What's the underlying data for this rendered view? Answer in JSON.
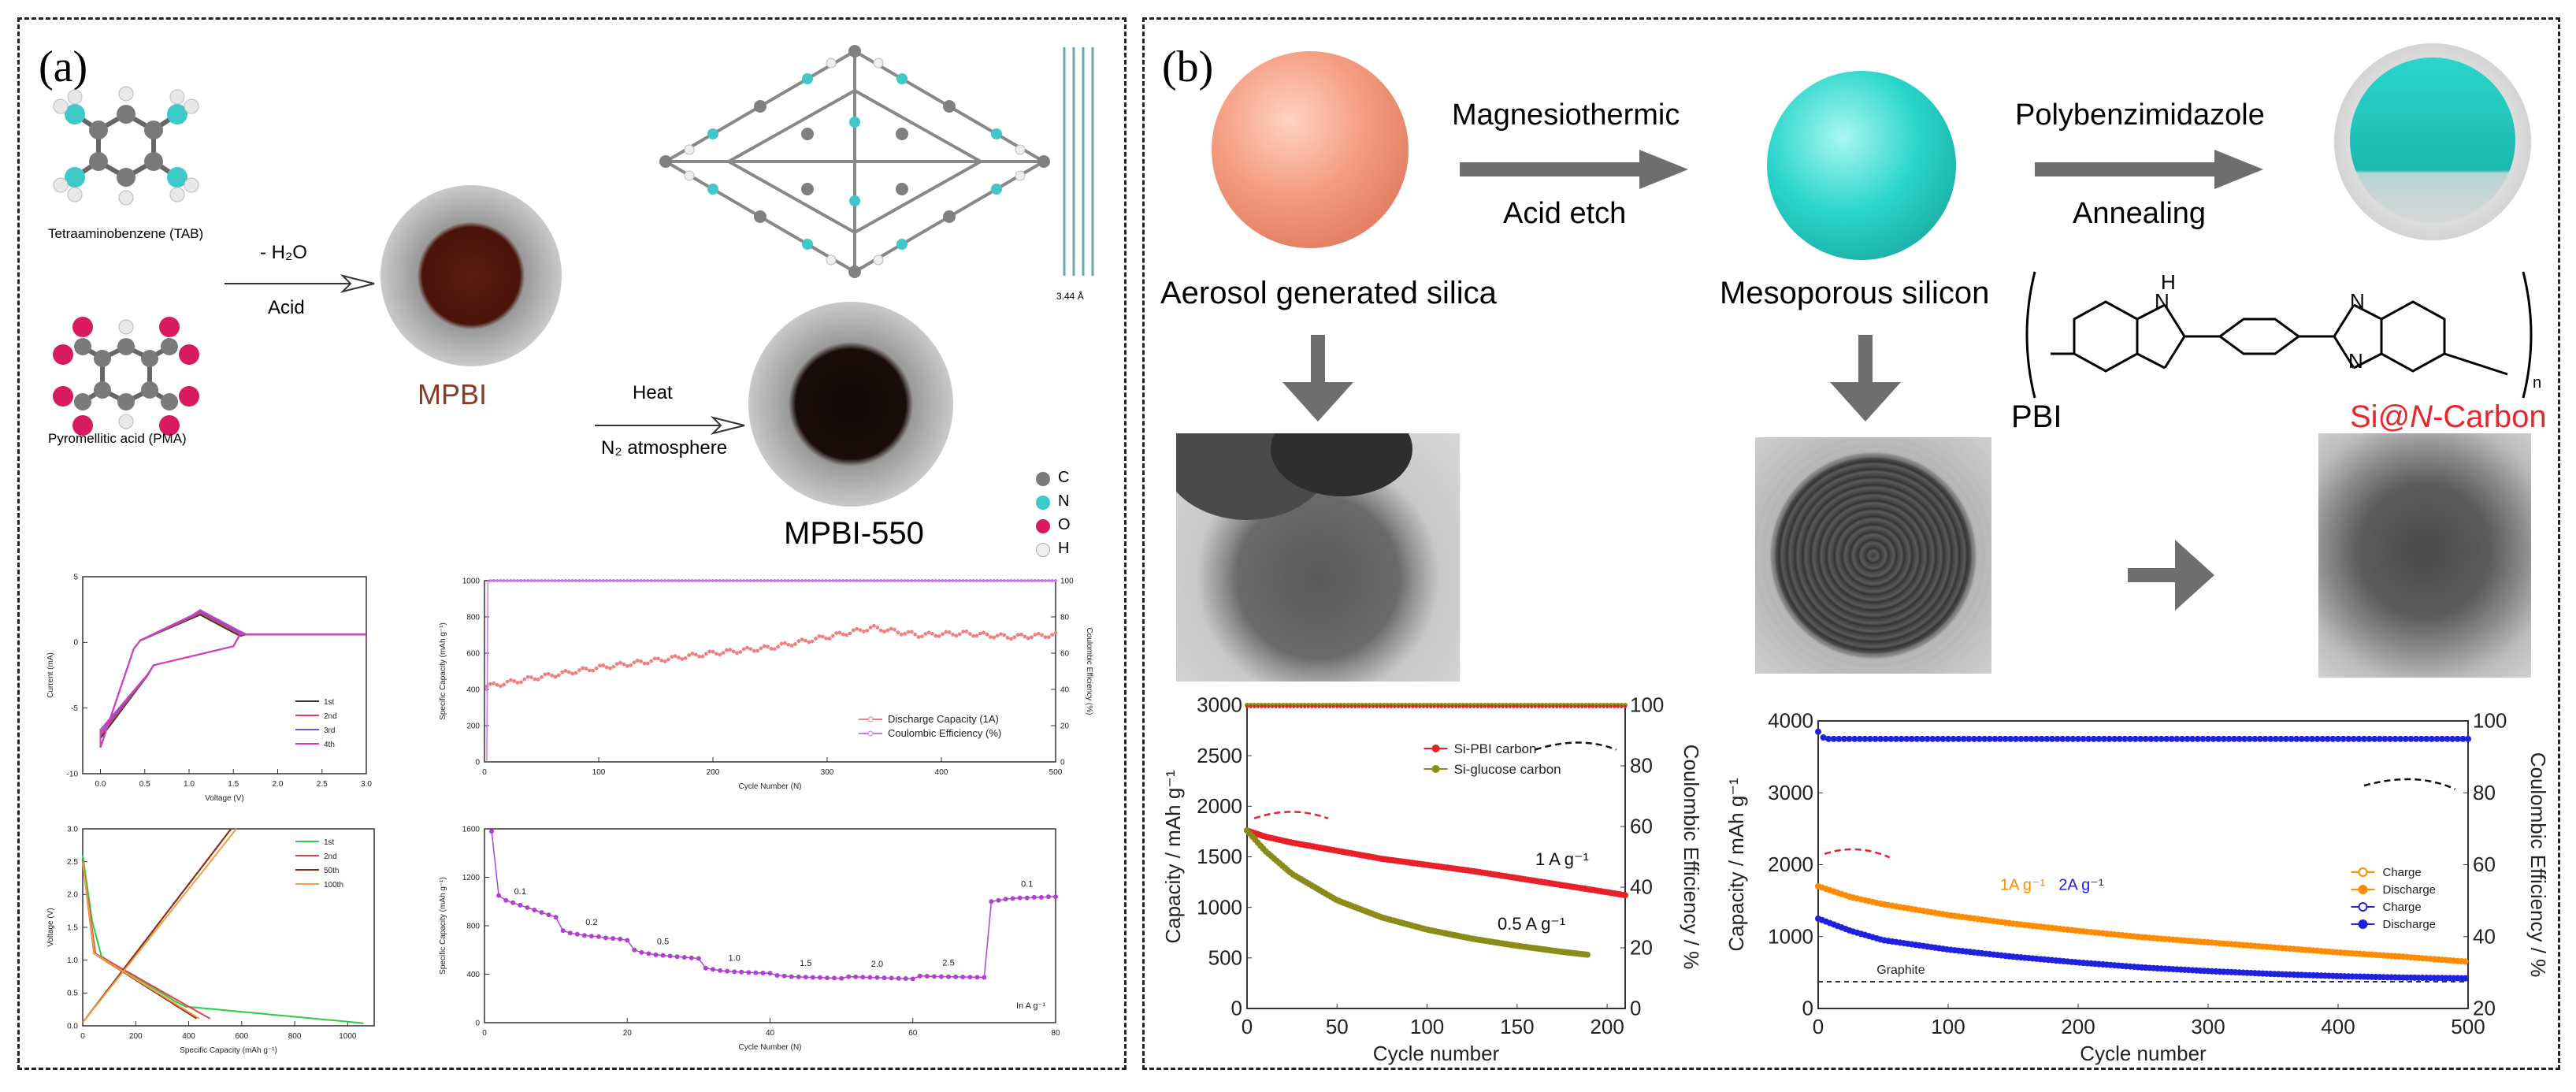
{
  "panel_a": {
    "label": "(a)",
    "molecules": {
      "tab": "Tetraaminobenzene (TAB)",
      "pma": "Pyromellitic acid (PMA)"
    },
    "step1": {
      "top": "- H₂O",
      "bottom": "Acid"
    },
    "step2": {
      "top": "Heat",
      "bottom": "N₂ atmosphere"
    },
    "product1": "MPBI",
    "product2": "MPBI-550",
    "distance": "3.44 Å",
    "atom_legend": [
      "C",
      "N",
      "O",
      "H"
    ],
    "atom_colors": {
      "C": "#7a7a7a",
      "N": "#3ec8c8",
      "O": "#d81b60",
      "H": "#e8e8e8"
    },
    "product1_color": "#8b3a2a"
  },
  "panel_b": {
    "label": "(b)",
    "step1": {
      "top": "Magnesiothermic",
      "bottom": "Acid etch"
    },
    "step2": {
      "top": "Polybenzimidazole",
      "bottom": "Annealing"
    },
    "sphere1_label": "Aerosol generated silica",
    "sphere2_label": "Mesoporous silicon",
    "pbi_label": "PBI",
    "nh_label": "H",
    "n_label": "N",
    "repeat_n": "n",
    "product_label": "Si@N-Carbon",
    "product_parts": {
      "pre": "Si@",
      "ital": "N",
      "post": "-Carbon"
    },
    "colors": {
      "silica": "#f49a7e",
      "silicon": "#2ad6cc",
      "product_label": "#e8262b",
      "arrow": "#6e6e6e"
    }
  },
  "chart_data": [
    {
      "id": "a_cv",
      "type": "line",
      "title": "",
      "xlabel": "Voltage (V)",
      "ylabel": "Current (mA)",
      "xlim": [
        -0.2,
        3.0
      ],
      "ylim": [
        -10,
        5
      ],
      "xticks": [
        "0.0",
        "0.5",
        "1.0",
        "1.5",
        "2.0",
        "2.5",
        "3.0"
      ],
      "yticks": [
        "5",
        "0",
        "-5",
        "-10"
      ],
      "series": [
        {
          "name": "1st",
          "color": "#333333"
        },
        {
          "name": "2nd",
          "color": "#e0414f"
        },
        {
          "name": "3rd",
          "color": "#6a5acd"
        },
        {
          "name": "4th",
          "color": "#d63cc8"
        }
      ]
    },
    {
      "id": "a_gcd",
      "type": "line",
      "title": "",
      "xlabel": "Specific Capacity (mAh g⁻¹)",
      "ylabel": "Voltage (V)",
      "xlim": [
        0,
        1100
      ],
      "ylim": [
        0,
        3.0
      ],
      "xticks": [
        "0",
        "200",
        "400",
        "600",
        "800",
        "1000"
      ],
      "yticks": [
        "0.0",
        "0.5",
        "1.0",
        "1.5",
        "2.0",
        "2.5",
        "3.0"
      ],
      "series": [
        {
          "name": "1st",
          "color": "#2ecc40"
        },
        {
          "name": "2nd",
          "color": "#e0414f"
        },
        {
          "name": "50th",
          "color": "#8b2a1a"
        },
        {
          "name": "100th",
          "color": "#f0a040"
        }
      ]
    },
    {
      "id": "a_cycle",
      "type": "scatter",
      "title": "",
      "xlabel": "Cycle Number (N)",
      "ylabel": "Specific Capacity (mAh g⁻¹)",
      "ylabel2": "Coulombic Efficiency (%)",
      "xlim": [
        0,
        500
      ],
      "ylim": [
        0,
        1000
      ],
      "ylim2": [
        0,
        100
      ],
      "xticks": [
        "0",
        "100",
        "200",
        "300",
        "400",
        "500"
      ],
      "yticks": [
        "0",
        "200",
        "400",
        "600",
        "800",
        "1000"
      ],
      "y2ticks": [
        "0",
        "20",
        "40",
        "60",
        "80",
        "100"
      ],
      "series": [
        {
          "name": "Discharge Capacity (1A)",
          "color": "#f08080",
          "x": [
            5,
            50,
            100,
            150,
            200,
            250,
            300,
            340,
            380,
            420,
            460,
            500
          ],
          "y": [
            420,
            470,
            520,
            560,
            600,
            630,
            690,
            740,
            700,
            710,
            690,
            700
          ]
        },
        {
          "name": "Coulombic Efficiency (%)",
          "color": "#cc77ee",
          "axis": "right",
          "x": [
            0,
            5,
            100,
            200,
            300,
            400,
            500
          ],
          "y": [
            0,
            100,
            100,
            100,
            100,
            100,
            100
          ]
        }
      ]
    },
    {
      "id": "a_rate",
      "type": "scatter",
      "title": "",
      "xlabel": "Cycle Number (N)",
      "ylabel": "Specific Capacity (mAh g⁻¹)",
      "xlim": [
        0,
        80
      ],
      "ylim": [
        0,
        1600
      ],
      "xticks": [
        "0",
        "20",
        "40",
        "60",
        "80"
      ],
      "yticks": [
        "0",
        "400",
        "800",
        "1200",
        "1600"
      ],
      "annotation": "In A g⁻¹",
      "rate_labels": [
        "0.1",
        "0.2",
        "0.5",
        "1.0",
        "1.5",
        "2.0",
        "2.5",
        "0.1"
      ],
      "color": "#b040d0",
      "x": [
        1,
        2,
        3,
        4,
        5,
        6,
        7,
        8,
        9,
        10,
        11,
        12,
        13,
        14,
        15,
        16,
        17,
        18,
        19,
        20,
        21,
        22,
        23,
        24,
        25,
        26,
        27,
        28,
        29,
        30,
        31,
        32,
        33,
        34,
        35,
        36,
        37,
        38,
        39,
        40,
        41,
        42,
        43,
        44,
        45,
        46,
        47,
        48,
        49,
        50,
        51,
        52,
        53,
        54,
        55,
        56,
        57,
        58,
        59,
        60,
        61,
        62,
        63,
        64,
        65,
        66,
        67,
        68,
        69,
        70,
        71,
        72,
        73,
        74,
        75,
        76,
        77,
        78,
        79,
        80
      ],
      "y": [
        1580,
        1050,
        1010,
        990,
        970,
        950,
        930,
        910,
        890,
        870,
        760,
        740,
        730,
        720,
        715,
        710,
        700,
        695,
        690,
        680,
        600,
        580,
        570,
        560,
        555,
        550,
        545,
        540,
        535,
        530,
        450,
        440,
        430,
        425,
        420,
        418,
        415,
        412,
        410,
        408,
        390,
        385,
        380,
        378,
        376,
        374,
        372,
        370,
        368,
        366,
        380,
        378,
        376,
        374,
        372,
        370,
        368,
        366,
        364,
        362,
        385,
        383,
        381,
        380,
        379,
        378,
        377,
        376,
        375,
        374,
        1000,
        1010,
        1020,
        1025,
        1030,
        1030,
        1035,
        1035,
        1040,
        1040
      ]
    },
    {
      "id": "b_left",
      "type": "scatter",
      "title": "",
      "xlabel": "Cycle number",
      "ylabel": "Capacity / mAh g⁻¹",
      "ylabel2": "Coulombic Efficiency / %",
      "xlim": [
        0,
        210
      ],
      "ylim": [
        0,
        3000
      ],
      "ylim2": [
        0,
        100
      ],
      "xticks": [
        "0",
        "50",
        "100",
        "150",
        "200"
      ],
      "yticks": [
        "0",
        "500",
        "1000",
        "1500",
        "2000",
        "2500",
        "3000"
      ],
      "y2ticks": [
        "0",
        "20",
        "40",
        "60",
        "80",
        "100"
      ],
      "annotations": [
        "1 A g⁻¹",
        "0.5 A g⁻¹"
      ],
      "series": [
        {
          "name": "Si-PBI carbon",
          "color": "#e8202a",
          "x": [
            0,
            10,
            25,
            50,
            75,
            100,
            125,
            150,
            175,
            200,
            210
          ],
          "y": [
            1760,
            1700,
            1640,
            1560,
            1480,
            1420,
            1360,
            1290,
            1220,
            1150,
            1120
          ]
        },
        {
          "name": "Si-glucose carbon",
          "color": "#8b8b1a",
          "x": [
            0,
            10,
            25,
            50,
            75,
            100,
            125,
            150,
            175,
            190
          ],
          "y": [
            1760,
            1560,
            1330,
            1070,
            900,
            780,
            690,
            620,
            560,
            530
          ]
        },
        {
          "name": "CE",
          "color": "#8b8b1a",
          "axis": "right",
          "x": [
            0,
            50,
            100,
            150,
            200,
            210
          ],
          "y": [
            100,
            100,
            100,
            100,
            100,
            100
          ]
        }
      ]
    },
    {
      "id": "b_right",
      "type": "scatter",
      "title": "",
      "xlabel": "Cycle number",
      "ylabel": "Capacity / mAh g⁻¹",
      "ylabel2": "Coulombic Efficiency / %",
      "xlim": [
        0,
        500
      ],
      "ylim": [
        0,
        4000
      ],
      "ylim2": [
        20,
        100
      ],
      "xticks": [
        "0",
        "100",
        "200",
        "300",
        "400",
        "500"
      ],
      "yticks": [
        "0",
        "1000",
        "2000",
        "3000",
        "4000"
      ],
      "y2ticks": [
        "20",
        "40",
        "60",
        "80",
        "100"
      ],
      "annotations": [
        "1A g⁻¹",
        "2A g⁻¹",
        "Graphite"
      ],
      "graphite_level": 372,
      "series": [
        {
          "name": "Charge",
          "color": "#ff8c00",
          "hollow": true
        },
        {
          "name": "Discharge",
          "color": "#ff8c00",
          "x": [
            0,
            25,
            50,
            100,
            150,
            200,
            250,
            300,
            350,
            400,
            450,
            500
          ],
          "y": [
            1700,
            1550,
            1450,
            1300,
            1180,
            1080,
            990,
            920,
            850,
            780,
            720,
            650
          ]
        },
        {
          "name": "Charge",
          "color": "#2020e0",
          "hollow": true
        },
        {
          "name": "Discharge",
          "color": "#2020e0",
          "x": [
            0,
            25,
            50,
            100,
            150,
            200,
            250,
            300,
            350,
            400,
            450,
            500
          ],
          "y": [
            1250,
            1080,
            950,
            820,
            720,
            640,
            570,
            520,
            480,
            450,
            430,
            420
          ]
        },
        {
          "name": "CE",
          "color": "#2020e0",
          "axis": "right",
          "x": [
            0,
            5,
            100,
            200,
            300,
            400,
            500
          ],
          "y": [
            97,
            95,
            95,
            95,
            95,
            95,
            95
          ]
        }
      ]
    }
  ]
}
